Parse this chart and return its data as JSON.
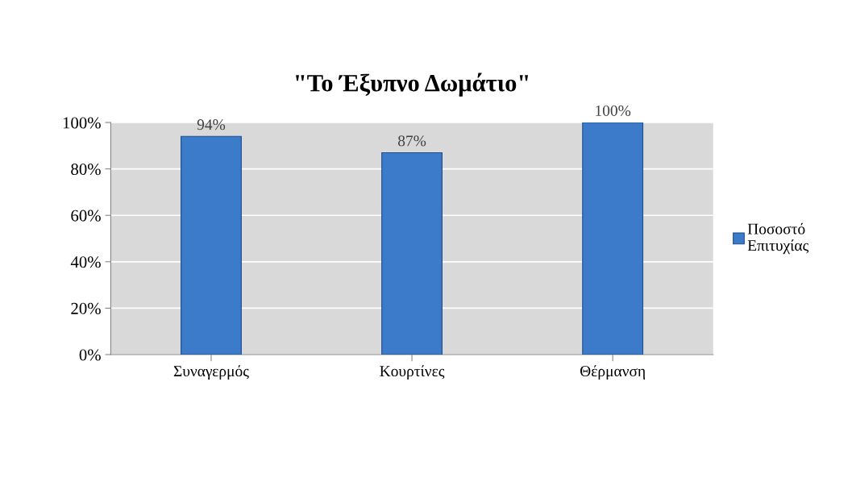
{
  "chart_data": {
    "type": "bar",
    "title": "\"Το Έξυπνο Δωμάτιο\"",
    "categories": [
      "Συναγερμός",
      "Κουρτίνες",
      "Θέρμανση"
    ],
    "series": [
      {
        "name": "Ποσοστό Επιτυχίας",
        "color": "#3c7bc9",
        "values": [
          94,
          87,
          100
        ],
        "value_labels": [
          "94%",
          "87%",
          "100%"
        ]
      }
    ],
    "ylim": [
      0,
      100
    ],
    "yticks": [
      {
        "value": 0,
        "label": "0%"
      },
      {
        "value": 20,
        "label": "20%"
      },
      {
        "value": 40,
        "label": "40%"
      },
      {
        "value": 60,
        "label": "60%"
      },
      {
        "value": 80,
        "label": "80%"
      },
      {
        "value": 100,
        "label": "100%"
      }
    ],
    "grid": "y",
    "legend": "right"
  }
}
